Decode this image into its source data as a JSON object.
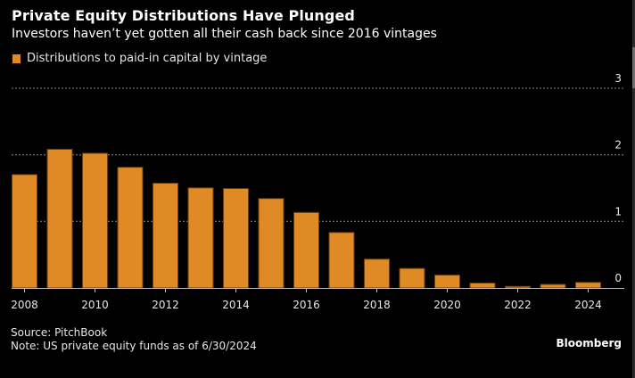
{
  "header": {
    "title": "Private Equity Distributions Have Plunged",
    "subtitle": "Investors haven’t yet gotten all their cash back since 2016 vintages"
  },
  "legend": {
    "label": "Distributions to paid-in capital by vintage",
    "color": "#df8a25"
  },
  "footer": {
    "source": "Source: PitchBook",
    "note": "Note: US private equity funds as of 6/30/2024",
    "brand": "Bloomberg"
  },
  "colors": {
    "bar_fill": "#df8a25",
    "bar_stroke": "#6b3f10",
    "grid": "#666666",
    "axis": "#bdbdbd",
    "background": "#000000"
  },
  "chart_data": {
    "type": "bar",
    "title": "Private Equity Distributions Have Plunged",
    "subtitle": "Investors haven’t yet gotten all their cash back since 2016 vintages",
    "xlabel": "",
    "ylabel": "",
    "categories": [
      "2008",
      "2009",
      "2010",
      "2011",
      "2012",
      "2013",
      "2014",
      "2015",
      "2016",
      "2017",
      "2018",
      "2019",
      "2020",
      "2021",
      "2022",
      "2023",
      "2024"
    ],
    "series": [
      {
        "name": "Distributions to paid-in capital by vintage",
        "values": [
          1.71,
          2.09,
          2.03,
          1.82,
          1.58,
          1.51,
          1.5,
          1.35,
          1.14,
          0.84,
          0.44,
          0.3,
          0.2,
          0.08,
          0.03,
          0.06,
          0.09
        ]
      }
    ],
    "x_tick_labels": [
      "2008",
      "2010",
      "2012",
      "2014",
      "2016",
      "2018",
      "2020",
      "2022",
      "2024"
    ],
    "y_ticks": [
      0,
      1,
      2,
      3
    ],
    "y_tick_labels": [
      "0",
      "1",
      "2",
      "3"
    ],
    "ylim": [
      0,
      3
    ],
    "y_axis_side": "right",
    "grid": true,
    "grid_style": "dotted horizontal",
    "legend_position": "top-left"
  }
}
